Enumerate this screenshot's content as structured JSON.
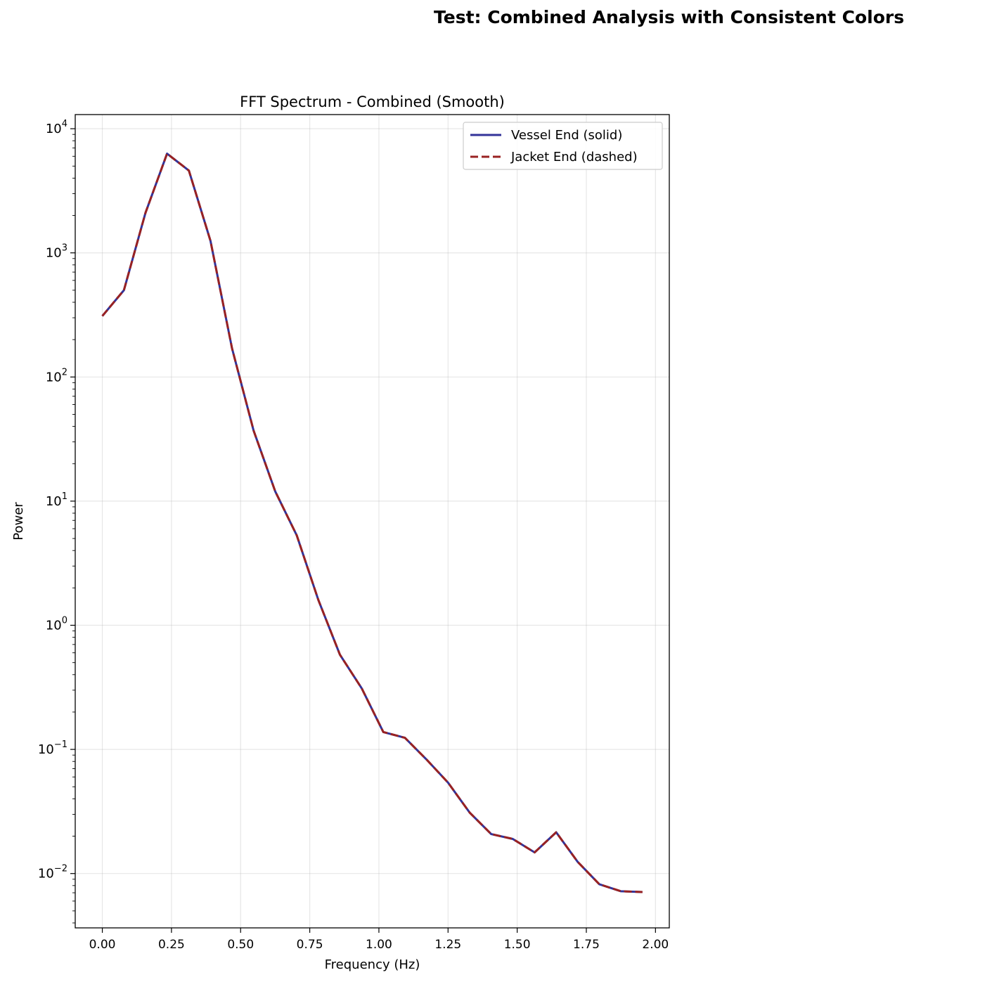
{
  "figure": {
    "suptitle": "Test: Combined Analysis with Consistent Colors"
  },
  "chart_data": {
    "type": "line",
    "title": "FFT Spectrum - Combined (Smooth)",
    "xlabel": "Frequency (Hz)",
    "ylabel": "Power",
    "xlim": [
      -0.098,
      2.05
    ],
    "ylim": [
      0.00365,
      13000
    ],
    "yscale": "log",
    "grid": true,
    "legend_position": "upper right",
    "x_ticks": [
      "0.00",
      "0.25",
      "0.50",
      "0.75",
      "1.00",
      "1.25",
      "1.50",
      "1.75",
      "2.00"
    ],
    "y_ticks": [
      {
        "base": "10",
        "exp": "−2",
        "value": 0.01
      },
      {
        "base": "10",
        "exp": "−1",
        "value": 0.1
      },
      {
        "base": "10",
        "exp": "0",
        "value": 1
      },
      {
        "base": "10",
        "exp": "1",
        "value": 10
      },
      {
        "base": "10",
        "exp": "2",
        "value": 100
      },
      {
        "base": "10",
        "exp": "3",
        "value": 1000
      },
      {
        "base": "10",
        "exp": "4",
        "value": 10000
      }
    ],
    "x": [
      0.0,
      0.078,
      0.156,
      0.234,
      0.313,
      0.391,
      0.469,
      0.547,
      0.625,
      0.703,
      0.781,
      0.859,
      0.938,
      1.016,
      1.094,
      1.172,
      1.25,
      1.328,
      1.406,
      1.484,
      1.563,
      1.641,
      1.719,
      1.797,
      1.875,
      1.953
    ],
    "series": [
      {
        "name": "Vessel End (solid)",
        "color": "#333399",
        "style": "solid",
        "values": [
          310,
          500,
          2100,
          6300,
          4600,
          1250,
          170,
          37,
          12,
          5.3,
          1.6,
          0.58,
          0.31,
          0.138,
          0.124,
          0.083,
          0.054,
          0.031,
          0.0208,
          0.019,
          0.0148,
          0.0215,
          0.0124,
          0.0082,
          0.0072,
          0.0071
        ]
      },
      {
        "name": "Jacket End (dashed)",
        "color": "#992222",
        "style": "dashed",
        "values": [
          310,
          500,
          2100,
          6300,
          4600,
          1250,
          170,
          37,
          12,
          5.3,
          1.6,
          0.58,
          0.31,
          0.138,
          0.124,
          0.083,
          0.054,
          0.031,
          0.0208,
          0.019,
          0.0148,
          0.0215,
          0.0124,
          0.0082,
          0.0072,
          0.0071
        ]
      }
    ]
  }
}
